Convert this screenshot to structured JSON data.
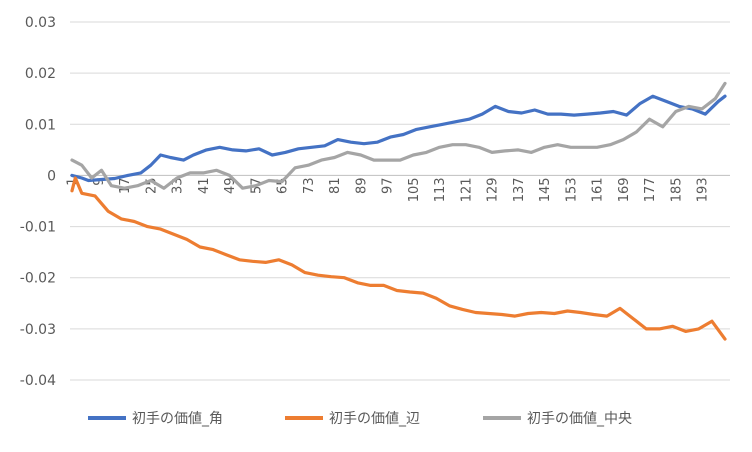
{
  "chart_data": {
    "type": "line",
    "title": "",
    "xlabel": "",
    "ylabel": "",
    "ylim": [
      -0.04,
      0.03
    ],
    "xlim": [
      1,
      200
    ],
    "x_tick_labels": [
      "1",
      "9",
      "17",
      "25",
      "33",
      "41",
      "49",
      "57",
      "65",
      "73",
      "81",
      "89",
      "97",
      "105",
      "113",
      "121",
      "129",
      "137",
      "145",
      "153",
      "161",
      "169",
      "177",
      "185",
      "193"
    ],
    "y_tick_labels": [
      "0.03",
      "0.02",
      "0.01",
      "0",
      "-0.01",
      "-0.02",
      "-0.03",
      "-0.04"
    ],
    "grid": "horizontal",
    "legend_position": "bottom",
    "series": [
      {
        "name": "初手の価値_角",
        "color": "#4472C4",
        "points": [
          [
            1,
            0.0
          ],
          [
            4,
            -0.0005
          ],
          [
            6,
            -0.001
          ],
          [
            10,
            -0.0008
          ],
          [
            14,
            -0.0006
          ],
          [
            18,
            0.0
          ],
          [
            22,
            0.0005
          ],
          [
            25,
            0.002
          ],
          [
            28,
            0.004
          ],
          [
            31,
            0.0035
          ],
          [
            35,
            0.003
          ],
          [
            38,
            0.004
          ],
          [
            42,
            0.005
          ],
          [
            46,
            0.0055
          ],
          [
            50,
            0.005
          ],
          [
            54,
            0.0048
          ],
          [
            58,
            0.0052
          ],
          [
            62,
            0.004
          ],
          [
            66,
            0.0045
          ],
          [
            70,
            0.0052
          ],
          [
            74,
            0.0055
          ],
          [
            78,
            0.0058
          ],
          [
            82,
            0.007
          ],
          [
            86,
            0.0065
          ],
          [
            90,
            0.0062
          ],
          [
            94,
            0.0065
          ],
          [
            98,
            0.0075
          ],
          [
            102,
            0.008
          ],
          [
            106,
            0.009
          ],
          [
            110,
            0.0095
          ],
          [
            114,
            0.01
          ],
          [
            118,
            0.0105
          ],
          [
            122,
            0.011
          ],
          [
            126,
            0.012
          ],
          [
            130,
            0.0135
          ],
          [
            134,
            0.0125
          ],
          [
            138,
            0.0122
          ],
          [
            142,
            0.0128
          ],
          [
            146,
            0.012
          ],
          [
            150,
            0.012
          ],
          [
            154,
            0.0118
          ],
          [
            158,
            0.012
          ],
          [
            162,
            0.0122
          ],
          [
            166,
            0.0125
          ],
          [
            170,
            0.0118
          ],
          [
            174,
            0.014
          ],
          [
            178,
            0.0155
          ],
          [
            182,
            0.0145
          ],
          [
            186,
            0.0135
          ],
          [
            190,
            0.013
          ],
          [
            194,
            0.012
          ],
          [
            198,
            0.0145
          ],
          [
            200,
            0.0155
          ]
        ]
      },
      {
        "name": "初手の価値_辺",
        "color": "#ED7D31",
        "points": [
          [
            1,
            -0.003
          ],
          [
            2,
            -0.0005
          ],
          [
            4,
            -0.0035
          ],
          [
            8,
            -0.004
          ],
          [
            12,
            -0.007
          ],
          [
            16,
            -0.0085
          ],
          [
            20,
            -0.009
          ],
          [
            24,
            -0.01
          ],
          [
            28,
            -0.0105
          ],
          [
            32,
            -0.0115
          ],
          [
            36,
            -0.0125
          ],
          [
            40,
            -0.014
          ],
          [
            44,
            -0.0145
          ],
          [
            48,
            -0.0155
          ],
          [
            52,
            -0.0165
          ],
          [
            56,
            -0.0168
          ],
          [
            60,
            -0.017
          ],
          [
            64,
            -0.0165
          ],
          [
            68,
            -0.0175
          ],
          [
            72,
            -0.019
          ],
          [
            76,
            -0.0195
          ],
          [
            80,
            -0.0198
          ],
          [
            84,
            -0.02
          ],
          [
            88,
            -0.021
          ],
          [
            92,
            -0.0215
          ],
          [
            96,
            -0.0215
          ],
          [
            100,
            -0.0225
          ],
          [
            104,
            -0.0228
          ],
          [
            108,
            -0.023
          ],
          [
            112,
            -0.024
          ],
          [
            116,
            -0.0255
          ],
          [
            120,
            -0.0262
          ],
          [
            124,
            -0.0268
          ],
          [
            128,
            -0.027
          ],
          [
            132,
            -0.0272
          ],
          [
            136,
            -0.0275
          ],
          [
            140,
            -0.027
          ],
          [
            144,
            -0.0268
          ],
          [
            148,
            -0.027
          ],
          [
            152,
            -0.0265
          ],
          [
            156,
            -0.0268
          ],
          [
            160,
            -0.0272
          ],
          [
            164,
            -0.0275
          ],
          [
            168,
            -0.026
          ],
          [
            172,
            -0.028
          ],
          [
            176,
            -0.03
          ],
          [
            180,
            -0.03
          ],
          [
            184,
            -0.0295
          ],
          [
            188,
            -0.0305
          ],
          [
            192,
            -0.03
          ],
          [
            196,
            -0.0285
          ],
          [
            200,
            -0.032
          ]
        ]
      },
      {
        "name": "初手の価値_中央",
        "color": "#A5A5A5",
        "points": [
          [
            1,
            0.003
          ],
          [
            4,
            0.002
          ],
          [
            7,
            -0.0005
          ],
          [
            10,
            0.001
          ],
          [
            13,
            -0.002
          ],
          [
            17,
            -0.0025
          ],
          [
            21,
            -0.002
          ],
          [
            25,
            -0.001
          ],
          [
            29,
            -0.0025
          ],
          [
            33,
            -0.0005
          ],
          [
            37,
            0.0005
          ],
          [
            41,
            0.0005
          ],
          [
            45,
            0.001
          ],
          [
            49,
            0.0
          ],
          [
            53,
            -0.0025
          ],
          [
            57,
            -0.002
          ],
          [
            61,
            -0.001
          ],
          [
            65,
            -0.0012
          ],
          [
            69,
            0.0015
          ],
          [
            73,
            0.002
          ],
          [
            77,
            0.003
          ],
          [
            81,
            0.0035
          ],
          [
            85,
            0.0045
          ],
          [
            89,
            0.004
          ],
          [
            93,
            0.003
          ],
          [
            97,
            0.003
          ],
          [
            101,
            0.003
          ],
          [
            105,
            0.004
          ],
          [
            109,
            0.0045
          ],
          [
            113,
            0.0055
          ],
          [
            117,
            0.006
          ],
          [
            121,
            0.006
          ],
          [
            125,
            0.0055
          ],
          [
            129,
            0.0045
          ],
          [
            133,
            0.0048
          ],
          [
            137,
            0.005
          ],
          [
            141,
            0.0045
          ],
          [
            145,
            0.0055
          ],
          [
            149,
            0.006
          ],
          [
            153,
            0.0055
          ],
          [
            157,
            0.0055
          ],
          [
            161,
            0.0055
          ],
          [
            165,
            0.006
          ],
          [
            169,
            0.007
          ],
          [
            173,
            0.0085
          ],
          [
            177,
            0.011
          ],
          [
            181,
            0.0095
          ],
          [
            185,
            0.0125
          ],
          [
            189,
            0.0135
          ],
          [
            193,
            0.013
          ],
          [
            197,
            0.015
          ],
          [
            200,
            0.018
          ]
        ]
      }
    ]
  }
}
